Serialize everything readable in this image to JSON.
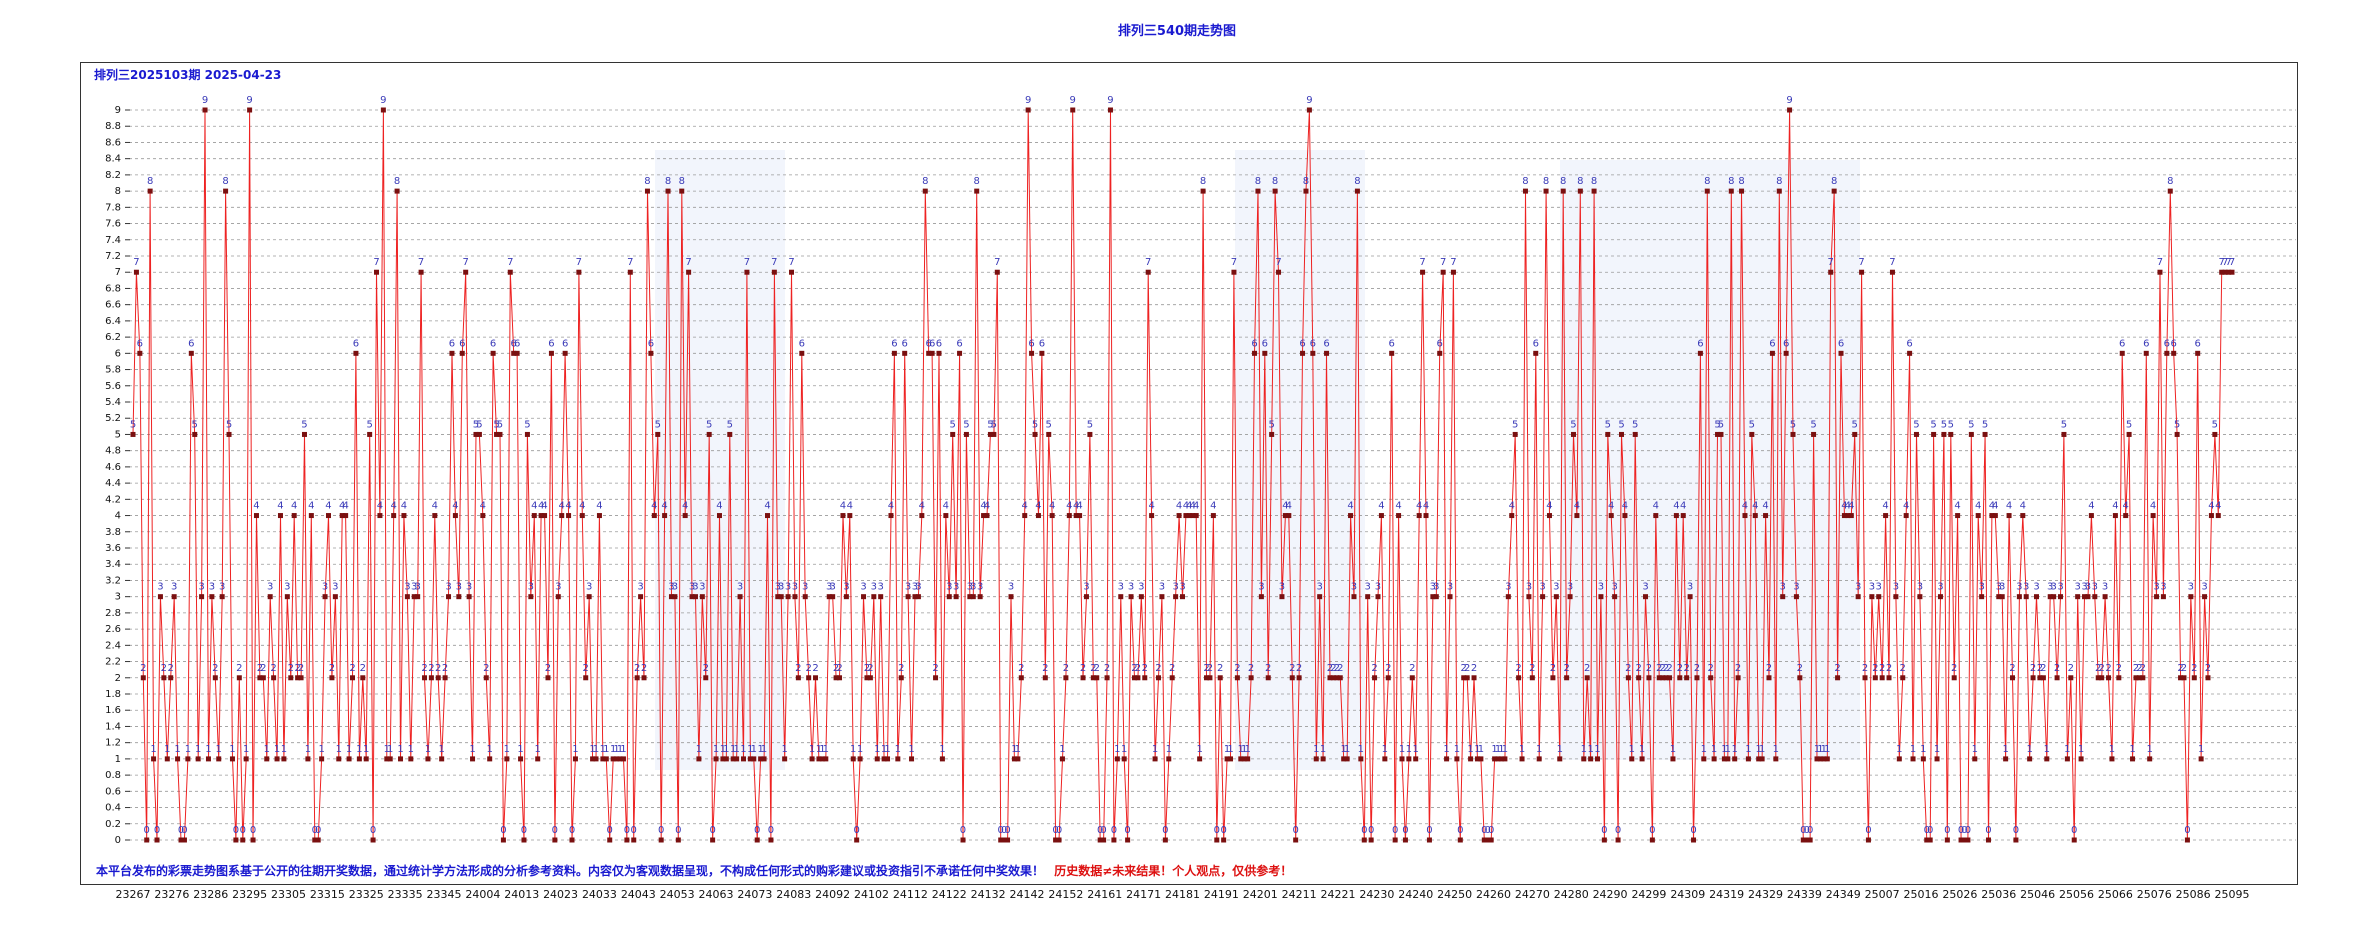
{
  "chart_data": {
    "type": "line",
    "title": "排列三540期走势图",
    "header": "排列三2025103期 2025-04-23",
    "disclaimer": "本平台发布的彩票走势图系基于公开的往期开奖数据，通过统计学方法形成的分析参考资料。内容仅为客观数据呈现，不构成任何形式的购彩建议或投资指引不承诺任何中奖效果！",
    "warning": "历史数据≠未来结果！个人观点，仅供参考！",
    "y_ticks": [
      "0",
      "0.2",
      "0.4",
      "0.6",
      "0.8",
      "1",
      "1.2",
      "1.4",
      "1.6",
      "1.8",
      "2",
      "2.2",
      "2.4",
      "2.6",
      "2.8",
      "3",
      "3.2",
      "3.4",
      "3.6",
      "3.8",
      "4",
      "4.2",
      "4.4",
      "4.6",
      "4.8",
      "5",
      "5.2",
      "5.4",
      "5.6",
      "5.8",
      "6",
      "6.2",
      "6.4",
      "6.6",
      "6.8",
      "7",
      "7.2",
      "7.4",
      "7.6",
      "7.8",
      "8",
      "8.2",
      "8.4",
      "8.6",
      "8.8",
      "9"
    ],
    "ylim": [
      0,
      9
    ],
    "x_tick_labels": [
      "23267",
      "23276",
      "23286",
      "23295",
      "23305",
      "23315",
      "23325",
      "23335",
      "23345",
      "24004",
      "24013",
      "24023",
      "24033",
      "24043",
      "24053",
      "24063",
      "24073",
      "24083",
      "24092",
      "24102",
      "24112",
      "24122",
      "24132",
      "24142",
      "24152",
      "24161",
      "24171",
      "24181",
      "24191",
      "24201",
      "24211",
      "24221",
      "24230",
      "24240",
      "24250",
      "24260",
      "24270",
      "24280",
      "24290",
      "24299",
      "24309",
      "24319",
      "24329",
      "24339",
      "24349",
      "25007",
      "25016",
      "25026",
      "25036",
      "25046",
      "25056",
      "25066",
      "25076",
      "25086",
      "25095"
    ],
    "grid": "horizontal-dashed",
    "line_color": "#ee2222",
    "marker_color": "#7a1010",
    "label_color": "#3a3ab8",
    "values": [
      5,
      7,
      6,
      2,
      0,
      8,
      1,
      0,
      3,
      2,
      1,
      2,
      3,
      1,
      0,
      0,
      1,
      6,
      5,
      1,
      3,
      9,
      1,
      3,
      2,
      1,
      3,
      8,
      5,
      1,
      0,
      2,
      0,
      1,
      9,
      0,
      4,
      2,
      2,
      1,
      3,
      2,
      1,
      4,
      1,
      3,
      2,
      4,
      2,
      2,
      5,
      1,
      4,
      0,
      0,
      1,
      3,
      4,
      2,
      3,
      1,
      4,
      4,
      1,
      2,
      6,
      1,
      2,
      1,
      5,
      0,
      7,
      4,
      9,
      1,
      1,
      4,
      8,
      1,
      4,
      3,
      1,
      3,
      3,
      7,
      2,
      1,
      2,
      4,
      2,
      1,
      2,
      3,
      6,
      4,
      3,
      6,
      7,
      3,
      1,
      5,
      5,
      4,
      2,
      1,
      6,
      5,
      5,
      0,
      1,
      7,
      6,
      6,
      1,
      0,
      5,
      3,
      4,
      1,
      4,
      4,
      2,
      6,
      0,
      3,
      4,
      6,
      4,
      0,
      1,
      7,
      4,
      2,
      3,
      1,
      1,
      4,
      1,
      1,
      0,
      1,
      1,
      1,
      1,
      0,
      7,
      0,
      2,
      3,
      2,
      8,
      6,
      4,
      5,
      0,
      4,
      8,
      3,
      3,
      0,
      8,
      4,
      7,
      3,
      3,
      1,
      3,
      2,
      5,
      0,
      1,
      4,
      1,
      1,
      5,
      1,
      1,
      3,
      1,
      7,
      1,
      1,
      0,
      1,
      1,
      4,
      0,
      7,
      3,
      3,
      1,
      3,
      7,
      3,
      2,
      6,
      3,
      2,
      1,
      2,
      1,
      1,
      1,
      3,
      3,
      2,
      2,
      4,
      3,
      4,
      1,
      0,
      1,
      3,
      2,
      2,
      3,
      1,
      3,
      1,
      1,
      4,
      6,
      1,
      2,
      6,
      3,
      1,
      3,
      3,
      4,
      8,
      6,
      6,
      2,
      6,
      1,
      4,
      3,
      5,
      3,
      6,
      0,
      5,
      3,
      3,
      8,
      3,
      4,
      4,
      5,
      5,
      7,
      0,
      0,
      0,
      3,
      1,
      1,
      2,
      4,
      9,
      6,
      5,
      4,
      6,
      2,
      5,
      4,
      0,
      0,
      1,
      2,
      4,
      9,
      4,
      4,
      2,
      3,
      5,
      2,
      2,
      0,
      0,
      2,
      9,
      0,
      1,
      3,
      1,
      0,
      3,
      2,
      2,
      3,
      2,
      7,
      4,
      1,
      2,
      3,
      0,
      1,
      2,
      3,
      4,
      3,
      4,
      4,
      4,
      4,
      1,
      8,
      2,
      2,
      4,
      0,
      2,
      0,
      1,
      1,
      7,
      2,
      1,
      1,
      1,
      2,
      6,
      8,
      3,
      6,
      2,
      5,
      8,
      7,
      3,
      4,
      4,
      2,
      0,
      2,
      6,
      8,
      9,
      6,
      1,
      3,
      1,
      6,
      2,
      2,
      2,
      2,
      1,
      1,
      4,
      3,
      8,
      1,
      0,
      3,
      0,
      2,
      3,
      4,
      1,
      2,
      6,
      0,
      4,
      1,
      0,
      1,
      2,
      1,
      4,
      7,
      4,
      0,
      3,
      3,
      6,
      7,
      1,
      3,
      7,
      1,
      0,
      2,
      2,
      1,
      2,
      1,
      1,
      0,
      0,
      0,
      1,
      1,
      1,
      1,
      3,
      4,
      5,
      2,
      1,
      8,
      3,
      2,
      6,
      1,
      3,
      8,
      4,
      2,
      3,
      1,
      8,
      2,
      3,
      5,
      4,
      8,
      1,
      2,
      1,
      8,
      1,
      3,
      0,
      5,
      4,
      3,
      0,
      5,
      4,
      2,
      1,
      5,
      2,
      1,
      3,
      2,
      0,
      4,
      2,
      2,
      2,
      2,
      1,
      4,
      2,
      4,
      2,
      3,
      0,
      2,
      6,
      1,
      8,
      2,
      1,
      5,
      5,
      1,
      1,
      8,
      1,
      2,
      8,
      4,
      1,
      5,
      4,
      1,
      1,
      4,
      2,
      6,
      1,
      8,
      3,
      6,
      9,
      5,
      3,
      2,
      0,
      0,
      0,
      5,
      1,
      1,
      1,
      1,
      7,
      8,
      2,
      6,
      4,
      4,
      4,
      5,
      3,
      7,
      2,
      0,
      3,
      2,
      3,
      2,
      4,
      2,
      7,
      3,
      1,
      2,
      4,
      6,
      1,
      5,
      3,
      1,
      0,
      0,
      5,
      1,
      3,
      5,
      0,
      5,
      2,
      4,
      0,
      0,
      0,
      5,
      1,
      4,
      3,
      5,
      0,
      4,
      4,
      3,
      3,
      1,
      4,
      2,
      0,
      3,
      4,
      3,
      1,
      2,
      3,
      2,
      2,
      1,
      3,
      3,
      2,
      3,
      5,
      1,
      2,
      0,
      3,
      1,
      3,
      3,
      4,
      3,
      2,
      2,
      3,
      2,
      1,
      4,
      2,
      6,
      4,
      5,
      1,
      2,
      2,
      2,
      6,
      1,
      4,
      3,
      7,
      3,
      6,
      8,
      6,
      5,
      2,
      2,
      0,
      3,
      2,
      6,
      1,
      3,
      2,
      4,
      5,
      4,
      7,
      7,
      7,
      7
    ]
  }
}
